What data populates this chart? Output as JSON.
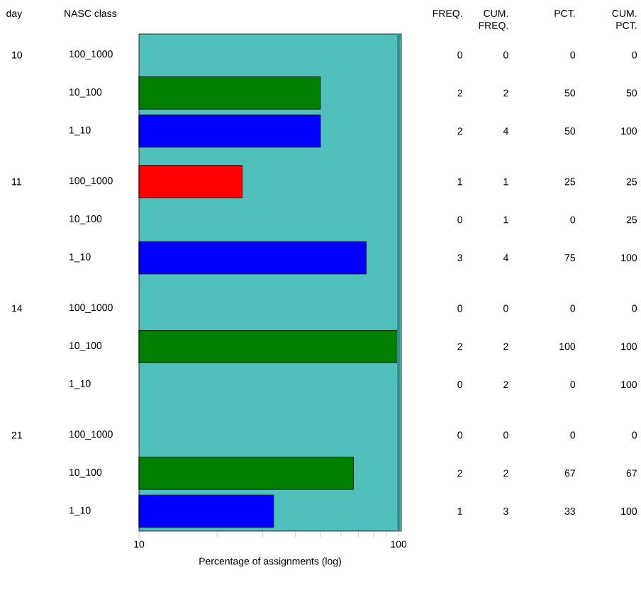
{
  "chart_data": {
    "type": "bar",
    "orientation": "horizontal",
    "categories": [
      "100_1000",
      "10_100",
      "1_10",
      "100_1000",
      "10_100",
      "1_10",
      "100_1000",
      "10_100",
      "1_10",
      "100_1000",
      "10_100",
      "1_10"
    ],
    "values": [
      null,
      50,
      50,
      25,
      null,
      75,
      null,
      100,
      null,
      null,
      67,
      33
    ],
    "colors": [
      "#ff0000",
      "#008000",
      "#0000ff",
      "#ff0000",
      "#008000",
      "#0000ff",
      "#ff0000",
      "#008000",
      "#0000ff",
      "#ff0000",
      "#008000",
      "#0000ff"
    ],
    "value_labels": [
      "0",
      "50",
      "50",
      "25",
      "0",
      "75",
      "0",
      "100",
      "0",
      "0",
      "67",
      "33"
    ],
    "ylabel": "NASC class",
    "xlabel": "Percentage of assignments (log)",
    "log": "x",
    "xlim": [
      10,
      102.5
    ],
    "xticks": [
      10,
      {
        "value": 20,
        "label": null
      },
      {
        "value": 30,
        "label": null
      },
      {
        "value": 40,
        "label": null
      },
      {
        "value": 50,
        "label": null
      },
      {
        "value": 60,
        "label": null
      },
      {
        "value": 70,
        "label": null
      },
      {
        "value": 80,
        "label": null
      },
      {
        "value": 90,
        "label": null
      },
      100
    ],
    "ref_lines": [
      {
        "axis": "x",
        "value": 100,
        "color": "#3c8c8c"
      }
    ],
    "annotations": [
      "day",
      "10",
      "11",
      "14",
      "21",
      "FREQ.",
      "CUM. FREQ.",
      "PCT.",
      "CUM. PCT.",
      "0",
      "2",
      "2",
      "1",
      "0",
      "3",
      "0",
      "2",
      "0",
      "0",
      "2",
      "1",
      "0",
      "2",
      "4",
      "1",
      "1",
      "4",
      "0",
      "2",
      "2",
      "0",
      "2",
      "3",
      "0",
      "50",
      "100",
      "25",
      "25",
      "100",
      "0",
      "100",
      "100",
      "0",
      "67",
      "100"
    ]
  }
}
